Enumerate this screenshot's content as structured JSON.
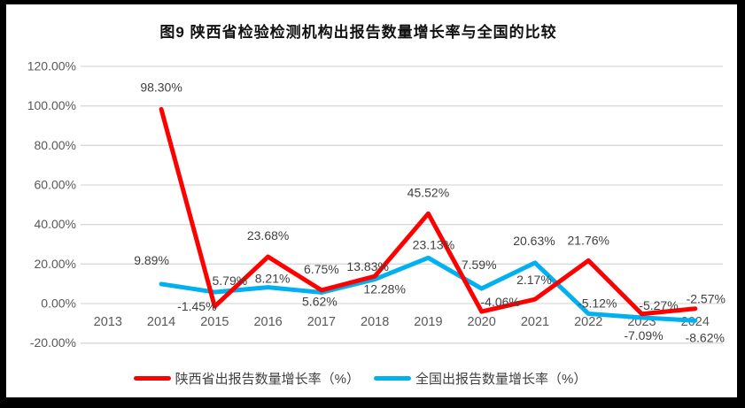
{
  "title": "图9 陕西省检验检测机构出报告数量增长率与全国的比较",
  "chart_data": {
    "type": "line",
    "categories": [
      "2013",
      "2014",
      "2015",
      "2016",
      "2017",
      "2018",
      "2019",
      "2020",
      "2021",
      "2022",
      "2023",
      "2024"
    ],
    "series": [
      {
        "name": "陕西省出报告数量增长率（%）",
        "color": "#fe0000",
        "values": [
          null,
          98.3,
          -1.45,
          23.68,
          6.75,
          13.83,
          45.52,
          -4.06,
          2.17,
          21.76,
          -5.27,
          -2.57
        ]
      },
      {
        "name": "全国出报告数量增长率（%）",
        "color": "#00b0f0",
        "values": [
          null,
          9.89,
          5.79,
          8.21,
          5.62,
          12.28,
          23.13,
          7.59,
          20.63,
          -5.12,
          -7.09,
          -8.62
        ]
      }
    ],
    "ylim": [
      -20,
      120
    ],
    "yticks": [
      120,
      100,
      80,
      60,
      40,
      20,
      0,
      -20
    ],
    "ytick_format": "percent-2dp",
    "data_labels": true,
    "label_format": "percent-2dp",
    "grid": "horizontal",
    "legend_position": "bottom",
    "colors": {
      "gridline": "#d9d9d9",
      "tick_text": "#595959",
      "data_label_text": "#404040",
      "title_text": "#111111",
      "background": "#ffffff",
      "frame": "#000000"
    }
  }
}
